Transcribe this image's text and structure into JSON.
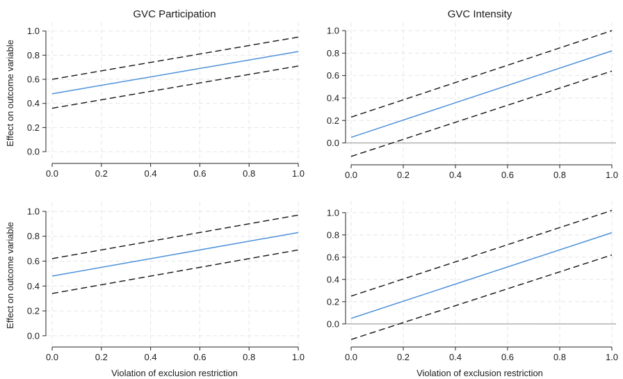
{
  "figure": {
    "col_titles": [
      "GVC Participation",
      "GVC Intensity"
    ],
    "ylabel": "Effect on outcome variable",
    "xlabel": "Violation of exclusion restriction"
  },
  "colors": {
    "estimate": "#4a90d9",
    "ci": "#111111",
    "zero_line": "#aaaaaa",
    "grid": "#e6e6e6",
    "axis": "#222222"
  },
  "chart_data": [
    {
      "type": "line",
      "title": "GVC Participation",
      "xlabel": "",
      "ylabel": "Effect on outcome variable",
      "xlim": [
        0,
        1
      ],
      "ylim": [
        -0.04,
        1.05
      ],
      "xticks": [
        "0.0",
        "0.2",
        "0.4",
        "0.6",
        "0.8",
        "1.0"
      ],
      "yticks": [
        "0.0",
        "0.2",
        "0.4",
        "0.6",
        "0.8",
        "1.0"
      ],
      "zero_line": false,
      "grid": true,
      "series": [
        {
          "role": "estimate",
          "x": [
            0,
            1
          ],
          "y": [
            0.48,
            0.83
          ]
        },
        {
          "role": "upper-ci",
          "x": [
            0,
            1
          ],
          "y": [
            0.6,
            0.95
          ]
        },
        {
          "role": "lower-ci",
          "x": [
            0,
            1
          ],
          "y": [
            0.36,
            0.71
          ]
        }
      ]
    },
    {
      "type": "line",
      "title": "GVC Intensity",
      "xlabel": "",
      "ylabel": "",
      "xlim": [
        0,
        1
      ],
      "ylim": [
        -0.17,
        1.05
      ],
      "xticks": [
        "0.0",
        "0.2",
        "0.4",
        "0.6",
        "0.8",
        "1.0"
      ],
      "yticks": [
        "0.0",
        "0.2",
        "0.4",
        "0.6",
        "0.8",
        "1.0"
      ],
      "zero_line": true,
      "grid": true,
      "series": [
        {
          "role": "estimate",
          "x": [
            0,
            1
          ],
          "y": [
            0.05,
            0.82
          ]
        },
        {
          "role": "upper-ci",
          "x": [
            0,
            1
          ],
          "y": [
            0.23,
            1.0
          ]
        },
        {
          "role": "lower-ci",
          "x": [
            0,
            1
          ],
          "y": [
            -0.12,
            0.64
          ]
        }
      ]
    },
    {
      "type": "line",
      "title": "",
      "xlabel": "Violation of exclusion restriction",
      "ylabel": "Effect on outcome variable",
      "xlim": [
        0,
        1
      ],
      "ylim": [
        -0.04,
        1.05
      ],
      "xticks": [
        "0.0",
        "0.2",
        "0.4",
        "0.6",
        "0.8",
        "1.0"
      ],
      "yticks": [
        "0.0",
        "0.2",
        "0.4",
        "0.6",
        "0.8",
        "1.0"
      ],
      "zero_line": false,
      "grid": true,
      "series": [
        {
          "role": "estimate",
          "x": [
            0,
            1
          ],
          "y": [
            0.48,
            0.83
          ]
        },
        {
          "role": "upper-ci",
          "x": [
            0,
            1
          ],
          "y": [
            0.62,
            0.97
          ]
        },
        {
          "role": "lower-ci",
          "x": [
            0,
            1
          ],
          "y": [
            0.34,
            0.69
          ]
        }
      ]
    },
    {
      "type": "line",
      "title": "",
      "xlabel": "Violation of exclusion restriction",
      "ylabel": "",
      "xlim": [
        0,
        1
      ],
      "ylim": [
        -0.17,
        1.08
      ],
      "xticks": [
        "0.0",
        "0.2",
        "0.4",
        "0.6",
        "0.8",
        "1.0"
      ],
      "yticks": [
        "0.0",
        "0.2",
        "0.4",
        "0.6",
        "0.8",
        "1.0"
      ],
      "zero_line": true,
      "grid": true,
      "series": [
        {
          "role": "estimate",
          "x": [
            0,
            1
          ],
          "y": [
            0.05,
            0.82
          ]
        },
        {
          "role": "upper-ci",
          "x": [
            0,
            1
          ],
          "y": [
            0.25,
            1.02
          ]
        },
        {
          "role": "lower-ci",
          "x": [
            0,
            1
          ],
          "y": [
            -0.14,
            0.62
          ]
        }
      ]
    }
  ]
}
